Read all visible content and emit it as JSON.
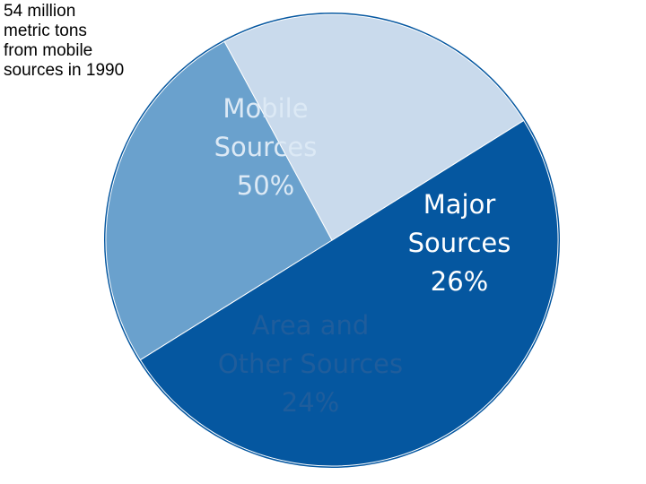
{
  "caption": "54 million\nmetric tons\nfrom mobile\nsources in 1990",
  "chart_data": {
    "type": "pie",
    "title": "",
    "slices": [
      {
        "label": [
          "Mobile",
          "Sources",
          "50%"
        ],
        "value": 50,
        "color": "#0557a0",
        "text_color": "#dce9f5"
      },
      {
        "label": [
          "Major",
          "Sources",
          "26%"
        ],
        "value": 26,
        "color": "#6aa1cd",
        "text_color": "#ffffff"
      },
      {
        "label": [
          "Area and",
          "Other Sources",
          "24%"
        ],
        "value": 24,
        "color": "#c9daec",
        "text_color": "#1f5d9c"
      }
    ],
    "border_color": "#0557a0"
  }
}
